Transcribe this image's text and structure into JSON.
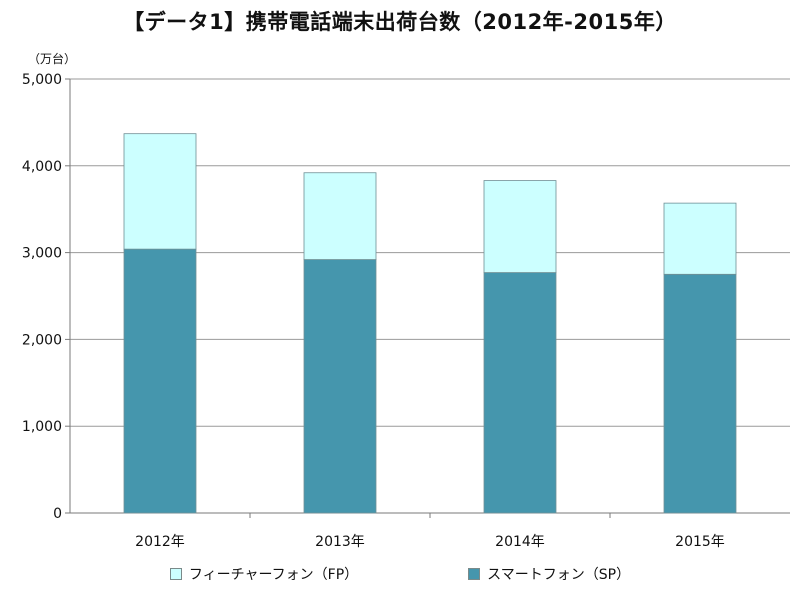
{
  "chart_data": {
    "type": "bar",
    "stacked": true,
    "title": "【データ1】携帯電話端末出荷台数（2012年-2015年）",
    "unit_label": "（万台）",
    "categories": [
      "2012年",
      "2013年",
      "2014年",
      "2015年"
    ],
    "series": [
      {
        "name": "スマートフォン（SP）",
        "values": [
          3040,
          2920,
          2770,
          2750
        ],
        "color": "#4596ad"
      },
      {
        "name": "フィーチャーフォン（FP）",
        "values": [
          1330,
          1000,
          1060,
          820
        ],
        "color": "#ccffff"
      }
    ],
    "ylim": [
      0,
      5000
    ],
    "yticks": [
      "0",
      "1,000",
      "2,000",
      "3,000",
      "4,000",
      "5,000"
    ],
    "grid": true,
    "legend_position": "bottom"
  }
}
